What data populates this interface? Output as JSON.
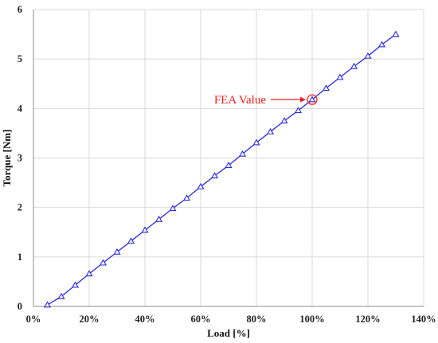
{
  "chart_data": {
    "type": "line",
    "xlabel": "Load [%]",
    "ylabel": "Torque [Nm]",
    "xlim": [
      0,
      140
    ],
    "ylim": [
      0,
      6
    ],
    "x_ticks": [
      0,
      20,
      40,
      60,
      80,
      100,
      120,
      140
    ],
    "x_tick_labels": [
      "0%",
      "20%",
      "40%",
      "60%",
      "80%",
      "100%",
      "120%",
      "140%"
    ],
    "y_ticks": [
      0,
      1,
      2,
      3,
      4,
      5,
      6
    ],
    "y_tick_labels": [
      "0",
      "1",
      "2",
      "3",
      "4",
      "5",
      "6"
    ],
    "grid": true,
    "series": [
      {
        "marker": "triangle",
        "color": "#2b2bd6",
        "x": [
          5,
          10,
          15,
          20,
          25,
          30,
          35,
          40,
          45,
          50,
          55,
          60,
          65,
          70,
          75,
          80,
          85,
          90,
          95,
          100,
          105,
          110,
          115,
          120,
          125,
          130
        ],
        "y": [
          0.03,
          0.2,
          0.43,
          0.66,
          0.88,
          1.1,
          1.32,
          1.54,
          1.76,
          1.98,
          2.19,
          2.42,
          2.64,
          2.85,
          3.08,
          3.31,
          3.53,
          3.75,
          3.96,
          4.18,
          4.41,
          4.63,
          4.85,
          5.06,
          5.29,
          5.5
        ]
      }
    ],
    "annotations": [
      {
        "text": "FEA Value",
        "x": 100,
        "y": 4.18,
        "color": "#e8201f"
      }
    ]
  }
}
